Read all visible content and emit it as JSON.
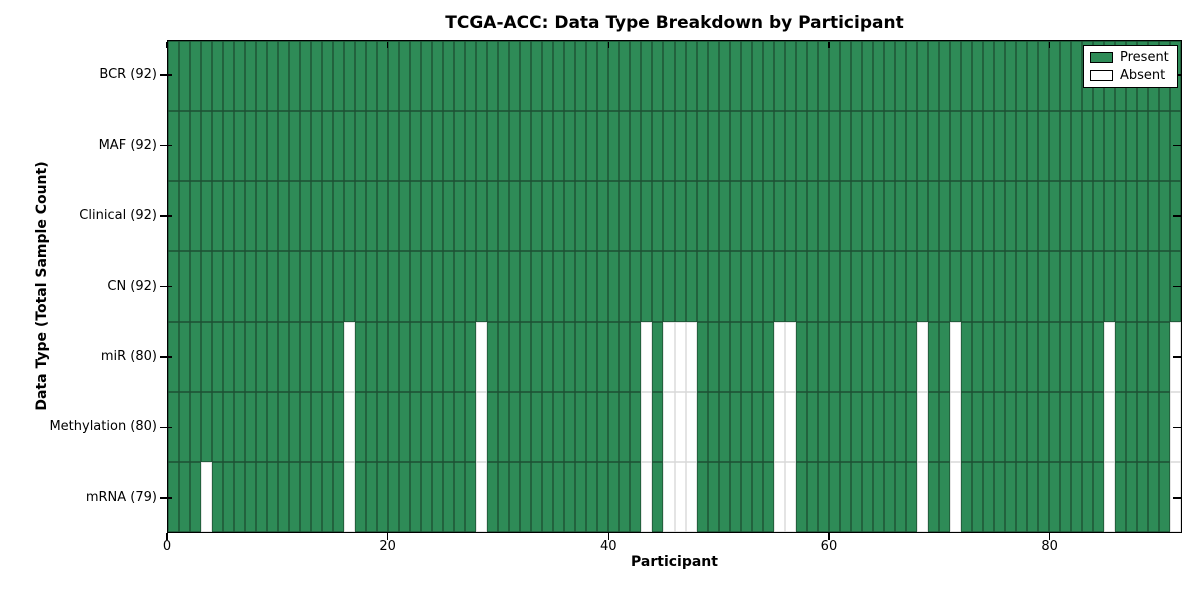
{
  "chart_data": {
    "type": "heatmap",
    "title": "TCGA-ACC: Data Type Breakdown by Participant",
    "xlabel": "Participant",
    "ylabel": "Data Type (Total Sample Count)",
    "x_ticks": [
      0,
      20,
      40,
      60,
      80
    ],
    "n_participants": 92,
    "x_range": [
      0,
      92
    ],
    "rows": [
      {
        "label": "BCR (92)",
        "data_type": "BCR",
        "present_count": 92,
        "absent_participants": []
      },
      {
        "label": "MAF (92)",
        "data_type": "MAF",
        "present_count": 92,
        "absent_participants": []
      },
      {
        "label": "Clinical (92)",
        "data_type": "Clinical",
        "present_count": 92,
        "absent_participants": []
      },
      {
        "label": "CN (92)",
        "data_type": "CN",
        "present_count": 92,
        "absent_participants": []
      },
      {
        "label": "miR (80)",
        "data_type": "miR",
        "present_count": 80,
        "absent_participants": [
          16,
          28,
          43,
          45,
          46,
          47,
          55,
          56,
          68,
          71,
          85,
          91
        ]
      },
      {
        "label": "Methylation (80)",
        "data_type": "Methylation",
        "present_count": 80,
        "absent_participants": [
          16,
          28,
          43,
          45,
          46,
          47,
          55,
          56,
          68,
          71,
          85,
          91
        ]
      },
      {
        "label": "mRNA (79)",
        "data_type": "mRNA",
        "present_count": 79,
        "absent_participants": [
          3,
          16,
          28,
          43,
          45,
          46,
          47,
          55,
          56,
          68,
          71,
          85,
          91
        ]
      }
    ],
    "legend": [
      {
        "label": "Present",
        "color": "#2e8b57"
      },
      {
        "label": "Absent",
        "color": "#ffffff"
      }
    ],
    "colors": {
      "present": "#2e8b57",
      "absent": "#ffffff",
      "axis": "#000000",
      "cell_edge_on_green": "#1d5033",
      "cell_edge_on_white": "#d8d8d8"
    },
    "layout": {
      "legend_position": "upper right",
      "grid": "cell-borders",
      "plot_border": "black"
    }
  }
}
